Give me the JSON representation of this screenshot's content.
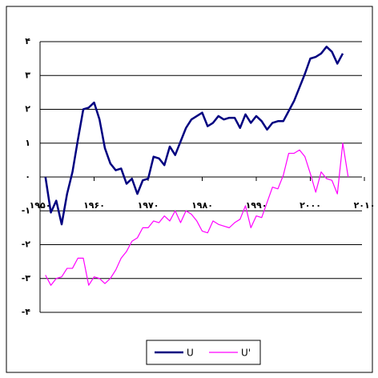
{
  "chart_data": {
    "type": "line",
    "x": [
      1951,
      1952,
      1953,
      1954,
      1955,
      1956,
      1957,
      1958,
      1959,
      1960,
      1961,
      1962,
      1963,
      1964,
      1965,
      1966,
      1967,
      1968,
      1969,
      1970,
      1971,
      1972,
      1973,
      1974,
      1975,
      1976,
      1977,
      1978,
      1979,
      1980,
      1981,
      1982,
      1983,
      1984,
      1985,
      1986,
      1987,
      1988,
      1989,
      1990,
      1991,
      1992,
      1993,
      1994,
      1995,
      1996,
      1997,
      1998,
      1999,
      2000,
      2001,
      2002,
      2003,
      2004,
      2005,
      2006,
      2007
    ],
    "series": [
      {
        "name": "U",
        "color": "#000080",
        "values": [
          0,
          -1.05,
          -0.7,
          -1.4,
          -0.5,
          0.15,
          1.1,
          2.0,
          2.05,
          2.2,
          1.7,
          0.85,
          0.4,
          0.2,
          0.25,
          -0.2,
          -0.05,
          -0.5,
          -0.1,
          -0.05,
          0.6,
          0.55,
          0.35,
          0.9,
          0.65,
          1.05,
          1.45,
          1.7,
          1.8,
          1.9,
          1.5,
          1.6,
          1.8,
          1.7,
          1.75,
          1.75,
          1.45,
          1.85,
          1.6,
          1.8,
          1.65,
          1.4,
          1.6,
          1.65,
          1.65,
          1.95,
          2.25,
          2.65,
          3.05,
          3.5,
          3.55,
          3.65,
          3.85,
          3.7,
          3.35,
          3.65,
          null
        ]
      },
      {
        "name": "U'",
        "color": "#ff00ff",
        "values": [
          -2.9,
          -3.2,
          -3.0,
          -2.95,
          -2.7,
          -2.7,
          -2.4,
          -2.4,
          -3.2,
          -2.95,
          -3.0,
          -3.15,
          -3.0,
          -2.75,
          -2.4,
          -2.2,
          -1.9,
          -1.8,
          -1.5,
          -1.5,
          -1.3,
          -1.35,
          -1.15,
          -1.3,
          -1.0,
          -1.35,
          -1.0,
          -1.1,
          -1.3,
          -1.6,
          -1.65,
          -1.3,
          -1.4,
          -1.45,
          -1.5,
          -1.35,
          -1.25,
          -0.85,
          -1.5,
          -1.15,
          -1.2,
          -0.75,
          -0.3,
          -0.35,
          0.05,
          0.7,
          0.7,
          0.8,
          0.6,
          0.1,
          -0.45,
          0.15,
          -0.05,
          -0.1,
          -0.5,
          1.0,
          0.0
        ]
      }
    ],
    "xlim": [
      1950,
      2010
    ],
    "xticks": [
      {
        "value": 1950,
        "label": "۱۹۵۰"
      },
      {
        "value": 1960,
        "label": "۱۹۶۰"
      },
      {
        "value": 1970,
        "label": "۱۹۷۰"
      },
      {
        "value": 1980,
        "label": "۱۹۸۰"
      },
      {
        "value": 1990,
        "label": "۱۹۹۰"
      },
      {
        "value": 2000,
        "label": "۲۰۰۰"
      },
      {
        "value": 2010,
        "label": "۲۰۱۰"
      }
    ],
    "ylim": [
      -4,
      4
    ],
    "yticks": [
      {
        "value": -4,
        "label": "-۴"
      },
      {
        "value": -3,
        "label": "-۳"
      },
      {
        "value": -2,
        "label": "-۲"
      },
      {
        "value": -1,
        "label": "-۱"
      },
      {
        "value": 0,
        "label": "۰"
      },
      {
        "value": 1,
        "label": "۱"
      },
      {
        "value": 2,
        "label": "۲"
      },
      {
        "value": 3,
        "label": "۳"
      },
      {
        "value": 4,
        "label": "۴"
      }
    ],
    "grid": true,
    "legend": "bottom"
  }
}
